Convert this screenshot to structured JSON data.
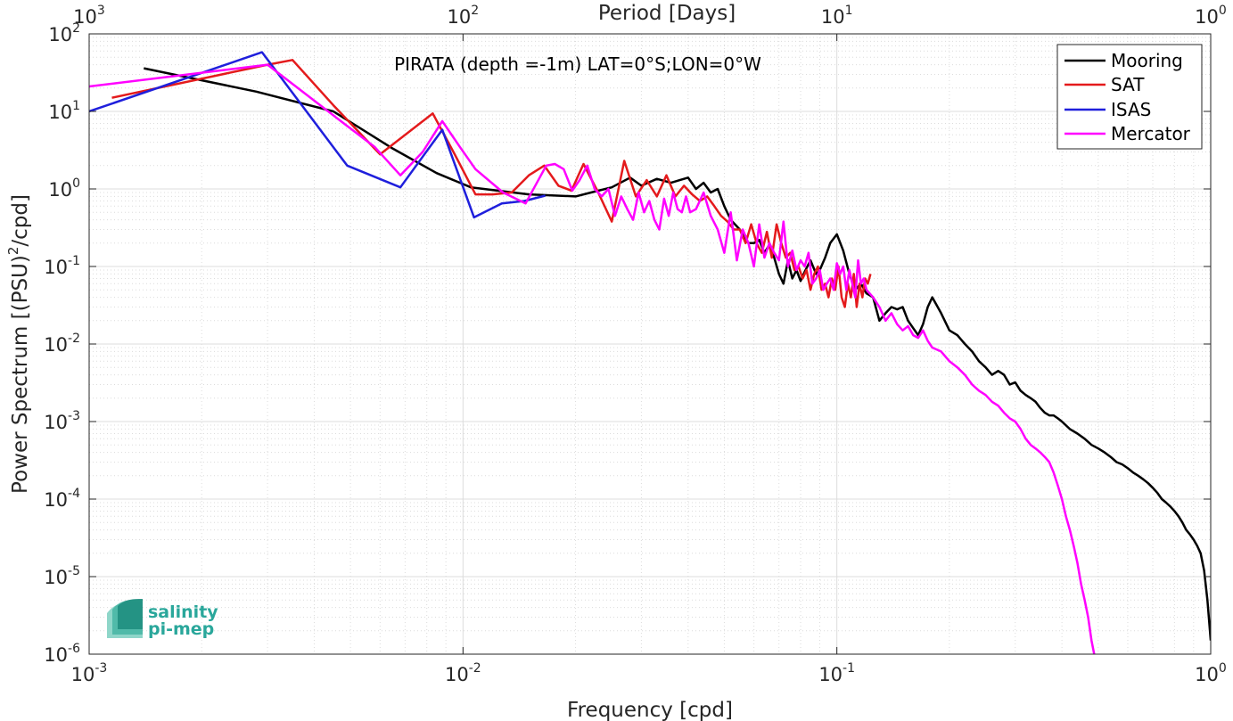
{
  "chart_data": {
    "type": "line",
    "title": "",
    "annotation": "PIRATA (depth =-1m) LAT=0°S;LON=0°W",
    "xlabel": "Frequency [cpd]",
    "ylabel_parts": [
      "Power Spectrum [(PSU)",
      "2",
      "/cpd]"
    ],
    "x2label": "Period [Days]",
    "xscale": "log",
    "yscale": "log",
    "xlim": [
      0.001,
      1
    ],
    "ylim": [
      1e-06,
      100
    ],
    "grid": true,
    "legend_position": "top-right",
    "x_ticks": [
      {
        "value": 0.001,
        "base": "10",
        "exp": "-3"
      },
      {
        "value": 0.01,
        "base": "10",
        "exp": "-2"
      },
      {
        "value": 0.1,
        "base": "10",
        "exp": "-1"
      },
      {
        "value": 1,
        "base": "10",
        "exp": "0"
      }
    ],
    "x2_ticks": [
      {
        "value": 0.001,
        "base": "10",
        "exp": "3"
      },
      {
        "value": 0.01,
        "base": "10",
        "exp": "2"
      },
      {
        "value": 0.1,
        "base": "10",
        "exp": "1"
      },
      {
        "value": 1,
        "base": "10",
        "exp": "0"
      }
    ],
    "y_ticks": [
      {
        "value": 1e-06,
        "base": "10",
        "exp": "-6"
      },
      {
        "value": 1e-05,
        "base": "10",
        "exp": "-5"
      },
      {
        "value": 0.0001,
        "base": "10",
        "exp": "-4"
      },
      {
        "value": 0.001,
        "base": "10",
        "exp": "-3"
      },
      {
        "value": 0.01,
        "base": "10",
        "exp": "-2"
      },
      {
        "value": 0.1,
        "base": "10",
        "exp": "-1"
      },
      {
        "value": 1,
        "base": "10",
        "exp": "0"
      },
      {
        "value": 10,
        "base": "10",
        "exp": "1"
      },
      {
        "value": 100,
        "base": "10",
        "exp": "2"
      }
    ],
    "series": [
      {
        "name": "Mooring",
        "color": "#000000",
        "x": [
          0.0014,
          0.0028,
          0.0045,
          0.0065,
          0.0085,
          0.0105,
          0.015,
          0.02,
          0.022,
          0.025,
          0.028,
          0.03,
          0.033,
          0.036,
          0.038,
          0.04,
          0.042,
          0.044,
          0.046,
          0.048,
          0.05,
          0.052,
          0.055,
          0.058,
          0.06,
          0.062,
          0.064,
          0.066,
          0.068,
          0.07,
          0.072,
          0.074,
          0.076,
          0.078,
          0.08,
          0.082,
          0.085,
          0.088,
          0.09,
          0.093,
          0.096,
          0.1,
          0.104,
          0.108,
          0.112,
          0.116,
          0.12,
          0.125,
          0.13,
          0.135,
          0.14,
          0.145,
          0.15,
          0.155,
          0.16,
          0.165,
          0.17,
          0.175,
          0.18,
          0.19,
          0.2,
          0.21,
          0.22,
          0.23,
          0.24,
          0.25,
          0.26,
          0.27,
          0.28,
          0.29,
          0.3,
          0.31,
          0.32,
          0.33,
          0.34,
          0.35,
          0.36,
          0.37,
          0.38,
          0.39,
          0.4,
          0.42,
          0.44,
          0.46,
          0.48,
          0.5,
          0.52,
          0.54,
          0.56,
          0.58,
          0.6,
          0.62,
          0.64,
          0.66,
          0.68,
          0.7,
          0.72,
          0.74,
          0.76,
          0.78,
          0.8,
          0.82,
          0.84,
          0.86,
          0.88,
          0.9,
          0.92,
          0.94,
          0.96,
          0.98,
          1.0
        ],
        "y": [
          36,
          18,
          10,
          3.3,
          1.6,
          1.05,
          0.85,
          0.8,
          0.9,
          1.05,
          1.4,
          1.1,
          1.35,
          1.2,
          1.3,
          1.4,
          1.0,
          1.2,
          0.9,
          1.0,
          0.6,
          0.4,
          0.3,
          0.2,
          0.2,
          0.22,
          0.15,
          0.19,
          0.13,
          0.08,
          0.06,
          0.12,
          0.07,
          0.09,
          0.065,
          0.085,
          0.12,
          0.08,
          0.09,
          0.13,
          0.2,
          0.26,
          0.16,
          0.08,
          0.05,
          0.06,
          0.045,
          0.04,
          0.02,
          0.025,
          0.03,
          0.028,
          0.03,
          0.02,
          0.016,
          0.013,
          0.018,
          0.03,
          0.04,
          0.025,
          0.015,
          0.013,
          0.01,
          0.008,
          0.006,
          0.005,
          0.004,
          0.0045,
          0.004,
          0.003,
          0.0032,
          0.0025,
          0.0022,
          0.002,
          0.0018,
          0.0015,
          0.0013,
          0.0012,
          0.0012,
          0.0011,
          0.001,
          0.0008,
          0.0007,
          0.0006,
          0.0005,
          0.00045,
          0.0004,
          0.00035,
          0.0003,
          0.00028,
          0.00025,
          0.00022,
          0.0002,
          0.00018,
          0.00016,
          0.00014,
          0.00012,
          0.0001,
          9e-05,
          8e-05,
          7e-05,
          6e-05,
          5e-05,
          4e-05,
          3.5e-05,
          3e-05,
          2.5e-05,
          2e-05,
          1.2e-05,
          5e-06,
          1.5e-06
        ]
      },
      {
        "name": "SAT",
        "color": "#e41a1c",
        "x": [
          0.00115,
          0.003,
          0.0035,
          0.0045,
          0.006,
          0.0083,
          0.0095,
          0.0108,
          0.012,
          0.0135,
          0.015,
          0.0165,
          0.018,
          0.0195,
          0.021,
          0.023,
          0.025,
          0.027,
          0.029,
          0.031,
          0.033,
          0.035,
          0.037,
          0.039,
          0.041,
          0.043,
          0.045,
          0.047,
          0.049,
          0.051,
          0.053,
          0.055,
          0.057,
          0.059,
          0.061,
          0.063,
          0.065,
          0.067,
          0.069,
          0.071,
          0.073,
          0.075,
          0.077,
          0.079,
          0.081,
          0.083,
          0.085,
          0.087,
          0.089,
          0.091,
          0.093,
          0.095,
          0.097,
          0.099,
          0.101,
          0.103,
          0.105,
          0.107,
          0.109,
          0.111,
          0.113,
          0.115,
          0.117,
          0.119,
          0.121,
          0.123
        ],
        "y": [
          15,
          40,
          46,
          12,
          2.8,
          9.4,
          2.8,
          0.85,
          0.85,
          0.9,
          1.5,
          2.0,
          1.1,
          0.95,
          2.1,
          0.9,
          0.38,
          2.3,
          0.8,
          1.3,
          0.8,
          1.5,
          0.8,
          1.1,
          0.85,
          0.7,
          0.8,
          0.6,
          0.45,
          0.38,
          0.3,
          0.3,
          0.2,
          0.35,
          0.2,
          0.15,
          0.28,
          0.13,
          0.35,
          0.2,
          0.13,
          0.15,
          0.09,
          0.1,
          0.07,
          0.09,
          0.05,
          0.08,
          0.1,
          0.05,
          0.06,
          0.04,
          0.07,
          0.05,
          0.1,
          0.04,
          0.03,
          0.06,
          0.04,
          0.08,
          0.03,
          0.06,
          0.04,
          0.07,
          0.06,
          0.08
        ]
      },
      {
        "name": "ISAS",
        "color": "#1f1fdc",
        "x": [
          0.001,
          0.0029,
          0.0049,
          0.0068,
          0.0088,
          0.0107,
          0.0127,
          0.0146,
          0.0166
        ],
        "y": [
          10,
          58,
          2.0,
          1.05,
          5.8,
          0.43,
          0.65,
          0.7,
          0.82
        ]
      },
      {
        "name": "Mercator",
        "color": "#ff00ff",
        "x": [
          0.001,
          0.003,
          0.0048,
          0.0058,
          0.0068,
          0.0078,
          0.0088,
          0.0098,
          0.0108,
          0.0128,
          0.0147,
          0.0167,
          0.0176,
          0.0186,
          0.0196,
          0.0205,
          0.0215,
          0.0225,
          0.0235,
          0.0245,
          0.0255,
          0.0265,
          0.0275,
          0.0285,
          0.0295,
          0.0305,
          0.0315,
          0.0325,
          0.0335,
          0.0345,
          0.0355,
          0.0365,
          0.0375,
          0.0385,
          0.0395,
          0.0405,
          0.042,
          0.044,
          0.046,
          0.048,
          0.05,
          0.052,
          0.054,
          0.056,
          0.058,
          0.06,
          0.062,
          0.064,
          0.066,
          0.068,
          0.07,
          0.072,
          0.074,
          0.076,
          0.078,
          0.08,
          0.082,
          0.084,
          0.086,
          0.088,
          0.09,
          0.092,
          0.094,
          0.096,
          0.098,
          0.1,
          0.102,
          0.104,
          0.106,
          0.108,
          0.11,
          0.112,
          0.114,
          0.116,
          0.118,
          0.12,
          0.125,
          0.13,
          0.135,
          0.14,
          0.145,
          0.15,
          0.155,
          0.16,
          0.165,
          0.17,
          0.175,
          0.18,
          0.19,
          0.2,
          0.21,
          0.22,
          0.23,
          0.24,
          0.25,
          0.26,
          0.27,
          0.28,
          0.29,
          0.3,
          0.31,
          0.32,
          0.33,
          0.34,
          0.35,
          0.36,
          0.37,
          0.38,
          0.39,
          0.4,
          0.41,
          0.42,
          0.43,
          0.44,
          0.45,
          0.46,
          0.47,
          0.48,
          0.49
        ],
        "y": [
          21,
          40,
          7,
          3.5,
          1.5,
          3.0,
          7.5,
          3.5,
          1.8,
          0.9,
          0.65,
          2.0,
          2.1,
          1.8,
          0.95,
          1.3,
          2.0,
          1.0,
          0.8,
          1.0,
          0.45,
          0.8,
          0.55,
          0.4,
          0.9,
          0.5,
          0.7,
          0.4,
          0.3,
          0.75,
          0.45,
          0.9,
          0.55,
          0.5,
          0.8,
          0.5,
          0.55,
          0.9,
          0.45,
          0.3,
          0.15,
          0.5,
          0.12,
          0.3,
          0.2,
          0.1,
          0.35,
          0.13,
          0.2,
          0.15,
          0.12,
          0.38,
          0.1,
          0.16,
          0.09,
          0.12,
          0.1,
          0.15,
          0.06,
          0.07,
          0.09,
          0.05,
          0.06,
          0.07,
          0.05,
          0.11,
          0.08,
          0.1,
          0.05,
          0.09,
          0.06,
          0.04,
          0.12,
          0.06,
          0.07,
          0.05,
          0.04,
          0.03,
          0.02,
          0.025,
          0.018,
          0.015,
          0.017,
          0.013,
          0.012,
          0.015,
          0.011,
          0.009,
          0.008,
          0.006,
          0.005,
          0.004,
          0.003,
          0.0025,
          0.0022,
          0.0018,
          0.0016,
          0.0013,
          0.0011,
          0.001,
          0.0008,
          0.0006,
          0.0005,
          0.00045,
          0.0004,
          0.00035,
          0.0003,
          0.00022,
          0.00015,
          0.0001,
          6e-05,
          4e-05,
          2.5e-05,
          1.5e-05,
          8e-06,
          5e-06,
          3e-06,
          1.5e-06,
          9e-07
        ]
      }
    ]
  },
  "logo": {
    "line1": "salinity",
    "line2": "pi-mep"
  },
  "colors": {
    "axis": "#262626",
    "grid": "#dcdcdc",
    "logo": "#2aa79b"
  }
}
